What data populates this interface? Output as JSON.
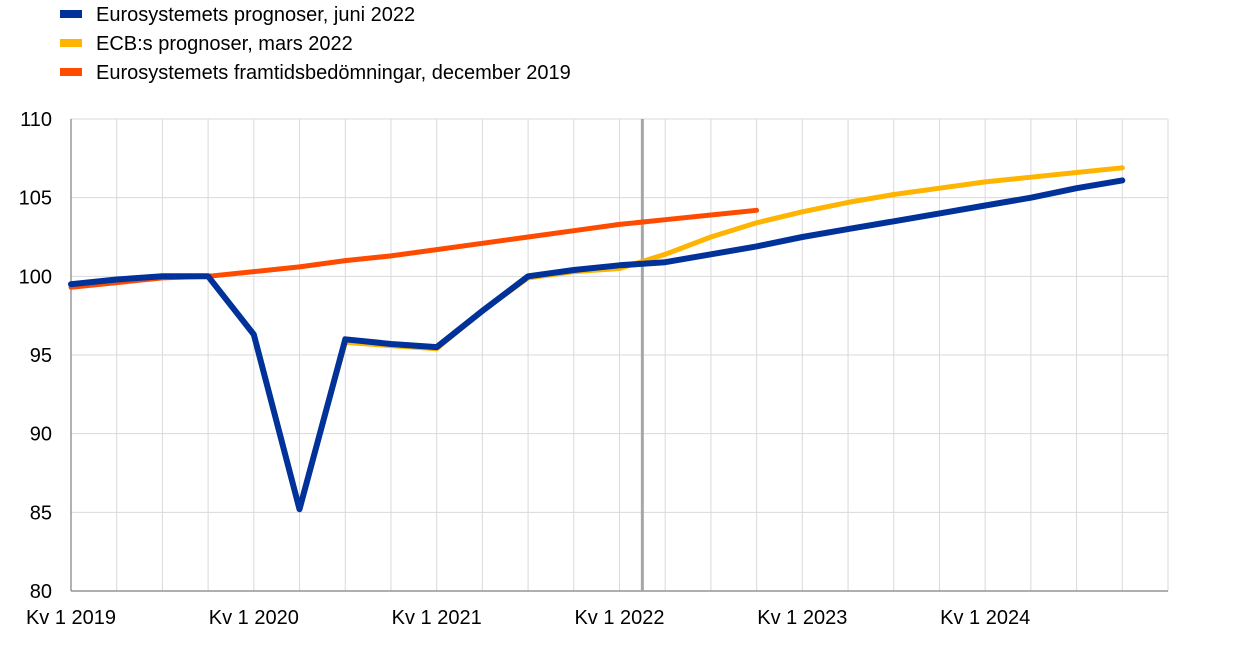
{
  "chart_data": {
    "type": "line",
    "title": "",
    "xlabel": "",
    "ylabel": "",
    "ylim": [
      80,
      110
    ],
    "y_ticks": [
      80,
      85,
      90,
      95,
      100,
      105,
      110
    ],
    "grid": true,
    "legend_position": "top-left",
    "quarters": [
      "2019Q1",
      "2019Q2",
      "2019Q3",
      "2019Q4",
      "2020Q1",
      "2020Q2",
      "2020Q3",
      "2020Q4",
      "2021Q1",
      "2021Q2",
      "2021Q3",
      "2021Q4",
      "2022Q1",
      "2022Q2",
      "2022Q3",
      "2022Q4",
      "2023Q1",
      "2023Q2",
      "2023Q3",
      "2023Q4",
      "2024Q1",
      "2024Q2",
      "2024Q3",
      "2024Q4"
    ],
    "x_tick_labels": [
      {
        "quarter": "2019Q1",
        "label": "Kv 1 2019"
      },
      {
        "quarter": "2020Q1",
        "label": "Kv 1 2020"
      },
      {
        "quarter": "2021Q1",
        "label": "Kv 1 2021"
      },
      {
        "quarter": "2022Q1",
        "label": "Kv 1 2022"
      },
      {
        "quarter": "2023Q1",
        "label": "Kv 1 2023"
      },
      {
        "quarter": "2024Q1",
        "label": "Kv 1 2024"
      }
    ],
    "vertical_marker_quarter": "2022Q1",
    "vertical_marker_offset_quarters": 0.5,
    "series": [
      {
        "name": "Eurosystemets framtidsbedömningar, december 2019",
        "color": "#ff4b00",
        "values": [
          99.3,
          99.6,
          99.9,
          100.0,
          100.3,
          100.6,
          101.0,
          101.3,
          101.7,
          102.1,
          102.5,
          102.9,
          103.3,
          103.6,
          103.9,
          104.2,
          null,
          null,
          null,
          null,
          null,
          null,
          null,
          null
        ]
      },
      {
        "name": "ECB:s prognoser, mars 2022",
        "color": "#ffb400",
        "values": [
          99.5,
          99.8,
          100.0,
          100.0,
          96.3,
          85.3,
          95.8,
          95.6,
          95.4,
          97.8,
          99.9,
          100.3,
          100.5,
          101.4,
          102.5,
          103.4,
          104.1,
          104.7,
          105.2,
          105.6,
          106.0,
          106.3,
          106.6,
          106.9
        ]
      },
      {
        "name": "Eurosystemets prognoser, juni 2022",
        "color": "#003299",
        "values": [
          99.5,
          99.8,
          100.0,
          100.0,
          96.3,
          85.2,
          96.0,
          95.7,
          95.5,
          97.8,
          100.0,
          100.4,
          100.7,
          100.9,
          101.4,
          101.9,
          102.5,
          103.0,
          103.5,
          104.0,
          104.5,
          105.0,
          105.6,
          106.1
        ]
      }
    ],
    "legend": [
      {
        "name": "Eurosystemets prognoser, juni 2022",
        "color": "#003299"
      },
      {
        "name": "ECB:s prognoser, mars 2022",
        "color": "#ffb400"
      },
      {
        "name": "Eurosystemets framtidsbedömningar, december 2019",
        "color": "#ff4b00"
      }
    ]
  }
}
